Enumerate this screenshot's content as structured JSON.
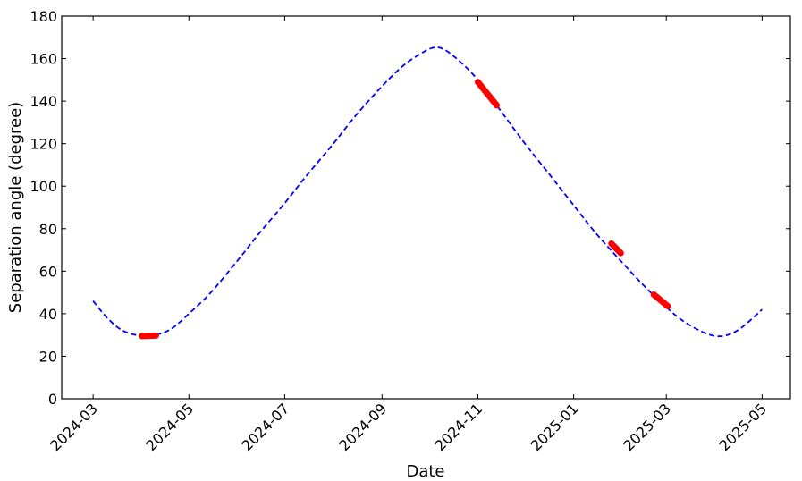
{
  "chart_data": {
    "type": "line",
    "title": "",
    "xlabel": "Date",
    "ylabel": "Separation angle (degree)",
    "xlim": [
      "2024-02-10",
      "2025-05-19"
    ],
    "ylim": [
      0,
      180
    ],
    "grid": false,
    "x_ticks": [
      "2024-03",
      "2024-05",
      "2024-07",
      "2024-09",
      "2024-11",
      "2025-01",
      "2025-03",
      "2025-05"
    ],
    "y_ticks": [
      "0",
      "20",
      "40",
      "60",
      "80",
      "100",
      "120",
      "140",
      "160",
      "180"
    ],
    "series": [
      {
        "style": "dashed",
        "color": "#0000ff",
        "points": [
          [
            "2024-03-01",
            46
          ],
          [
            "2024-03-10",
            38
          ],
          [
            "2024-03-20",
            32
          ],
          [
            "2024-04-01",
            29.5
          ],
          [
            "2024-04-10",
            30
          ],
          [
            "2024-04-20",
            33
          ],
          [
            "2024-05-01",
            40
          ],
          [
            "2024-05-15",
            50
          ],
          [
            "2024-06-01",
            65
          ],
          [
            "2024-06-15",
            78
          ],
          [
            "2024-07-01",
            92
          ],
          [
            "2024-07-15",
            105
          ],
          [
            "2024-08-01",
            120
          ],
          [
            "2024-08-15",
            133
          ],
          [
            "2024-09-01",
            147
          ],
          [
            "2024-09-15",
            157
          ],
          [
            "2024-09-25",
            162
          ],
          [
            "2024-10-03",
            165
          ],
          [
            "2024-10-10",
            164.5
          ],
          [
            "2024-10-20",
            159
          ],
          [
            "2024-11-01",
            150
          ],
          [
            "2024-11-15",
            136
          ],
          [
            "2024-12-01",
            120
          ],
          [
            "2024-12-15",
            107
          ],
          [
            "2025-01-01",
            91
          ],
          [
            "2025-01-15",
            78
          ],
          [
            "2025-02-01",
            64
          ],
          [
            "2025-02-15",
            53
          ],
          [
            "2025-03-01",
            43
          ],
          [
            "2025-03-15",
            35
          ],
          [
            "2025-04-01",
            29.5
          ],
          [
            "2025-04-15",
            32
          ],
          [
            "2025-05-01",
            42
          ]
        ]
      },
      {
        "style": "thick-solid",
        "color": "#ff0000",
        "segments": [
          [
            [
              "2024-04-01",
              29.5
            ],
            [
              "2024-04-10",
              29.7
            ]
          ],
          [
            [
              "2024-11-01",
              149
            ],
            [
              "2024-11-13",
              138
            ]
          ],
          [
            [
              "2025-01-25",
              73
            ],
            [
              "2025-01-31",
              68.5
            ]
          ],
          [
            [
              "2025-02-21",
              49
            ],
            [
              "2025-03-02",
              43.5
            ]
          ]
        ]
      }
    ]
  }
}
